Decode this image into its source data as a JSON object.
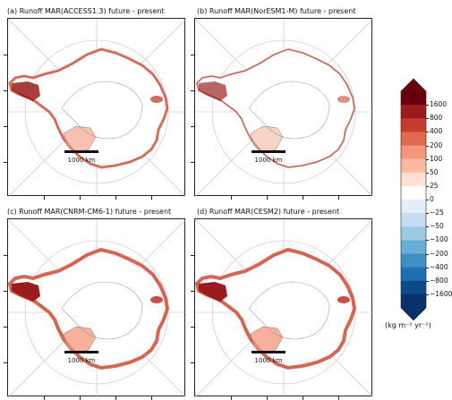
{
  "chart_data": [
    {
      "type": "heatmap",
      "title": "(a) Runoff MAR(ACCESS1.3) future - present",
      "scale_bar": "1000 km",
      "pattern": "moderate"
    },
    {
      "type": "heatmap",
      "title": "(b) Runoff MAR(NorESM1-M) future - present",
      "scale_bar": "1000 km",
      "pattern": "weak"
    },
    {
      "type": "heatmap",
      "title": "(c) Runoff MAR(CNRM-CM6-1) future - present",
      "scale_bar": "1000 km",
      "pattern": "strong"
    },
    {
      "type": "heatmap",
      "title": "(d) Runoff MAR(CESM2) future - present",
      "scale_bar": "1000 km",
      "pattern": "strong"
    }
  ],
  "colorbar": {
    "ticks": [
      "1600",
      "800",
      "400",
      "200",
      "100",
      "50",
      "25",
      "0",
      "−25",
      "−50",
      "−100",
      "−200",
      "−400",
      "−800",
      "−1600"
    ],
    "unit": "(kg m⁻² yr⁻¹)",
    "colors": [
      "#08306b",
      "#0d4a8a",
      "#1f6eb0",
      "#3f8fc4",
      "#6aaed6",
      "#9ecae1",
      "#c6dbef",
      "#e3eef8",
      "#ffffff",
      "#fde0d2",
      "#fcbba1",
      "#f4967b",
      "#e06a4f",
      "#c33c2e",
      "#9a1c1c",
      "#67000d"
    ]
  }
}
